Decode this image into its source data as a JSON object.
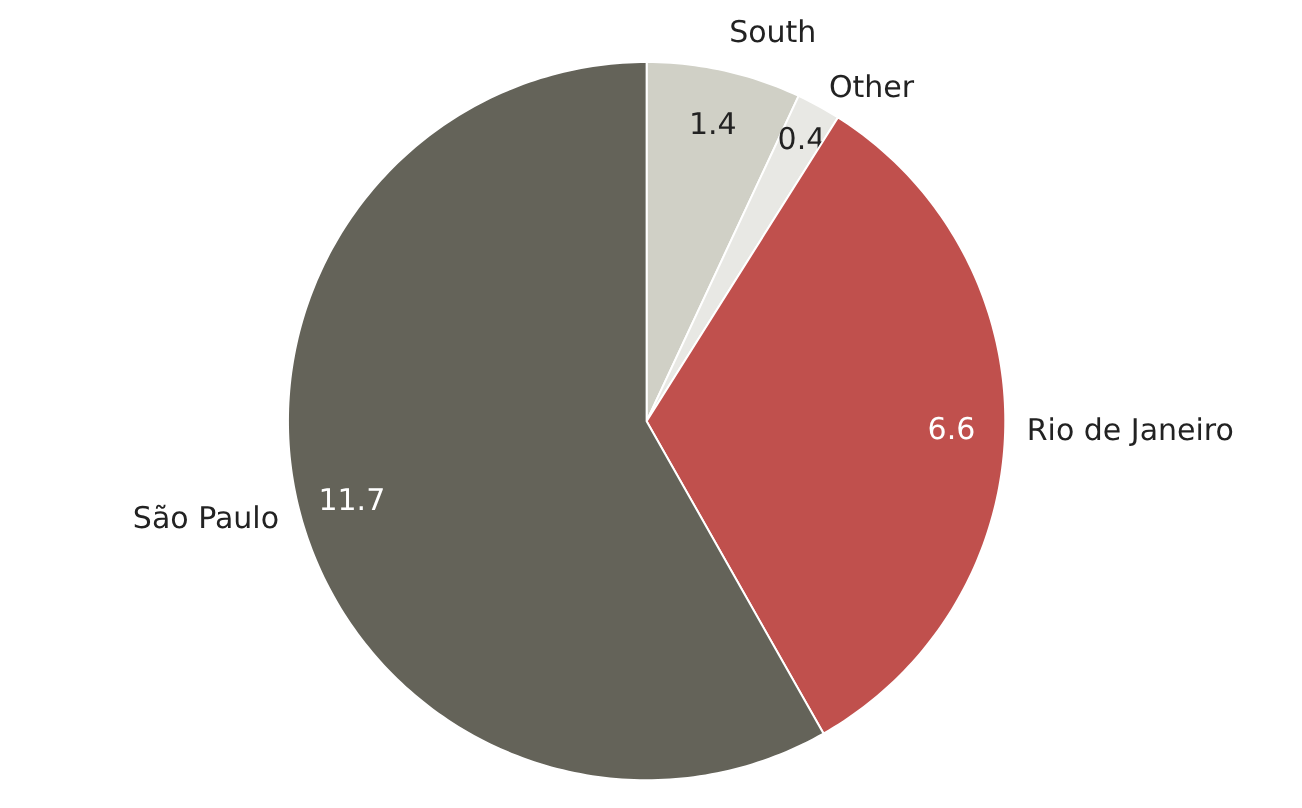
{
  "chart_data": {
    "type": "pie",
    "categories": [
      "South",
      "Other",
      "Rio de Janeiro",
      "São Paulo"
    ],
    "values": [
      1.4,
      0.4,
      6.6,
      11.7
    ],
    "colors": [
      "#d0d0c6",
      "#e8e8e4",
      "#c0504d",
      "#646359"
    ],
    "data_labels": true
  }
}
